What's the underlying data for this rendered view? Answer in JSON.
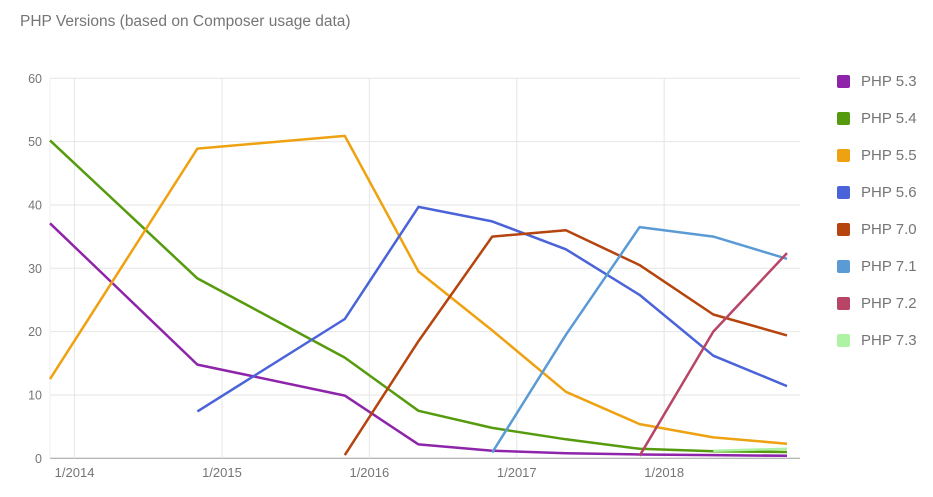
{
  "chart_data": {
    "type": "line",
    "title": "PHP Versions (based on Composer usage data)",
    "legend_position": "right",
    "grid": true,
    "ylim": [
      0,
      60
    ],
    "y_ticks": [
      0,
      10,
      20,
      30,
      40,
      50,
      60
    ],
    "x_tick_labels": [
      "1/2014",
      "1/2015",
      "1/2016",
      "1/2017",
      "1/2018"
    ],
    "x_tick_months": [
      2,
      14,
      26,
      38,
      50
    ],
    "point_dates": [
      "11/2013",
      "11/2014",
      "11/2015",
      "5/2016",
      "11/2016",
      "5/2017",
      "11/2017",
      "5/2018",
      "11/2018"
    ],
    "point_months": [
      0,
      12,
      24,
      30,
      36,
      42,
      48,
      54,
      60
    ],
    "series": [
      {
        "name": "PHP 5.3",
        "color": "#8e24aa",
        "values": [
          37.1,
          14.8,
          9.9,
          2.2,
          1.2,
          0.8,
          0.6,
          0.5,
          0.4
        ]
      },
      {
        "name": "PHP 5.4",
        "color": "#569b0e",
        "values": [
          50.2,
          28.4,
          15.9,
          7.5,
          4.8,
          3.0,
          1.5,
          1.1,
          1.0
        ]
      },
      {
        "name": "PHP 5.5",
        "color": "#efa211",
        "values": [
          12.5,
          48.9,
          50.9,
          29.5,
          20.2,
          10.5,
          5.4,
          3.3,
          2.3
        ]
      },
      {
        "name": "PHP 5.6",
        "color": "#4b63d8",
        "values": [
          null,
          7.4,
          22.0,
          39.7,
          37.4,
          33.0,
          25.8,
          16.2,
          11.4
        ]
      },
      {
        "name": "PHP 7.0",
        "color": "#b5440e",
        "values": [
          null,
          null,
          0.5,
          18.5,
          35.0,
          36.0,
          30.5,
          22.7,
          19.4
        ]
      },
      {
        "name": "PHP 7.1",
        "color": "#5b9bd5",
        "values": [
          null,
          null,
          null,
          null,
          0.9,
          19.5,
          36.5,
          35.0,
          31.5
        ]
      },
      {
        "name": "PHP 7.2",
        "color": "#b84566",
        "values": [
          null,
          null,
          null,
          null,
          null,
          null,
          0.4,
          20.0,
          32.4
        ]
      },
      {
        "name": "PHP 7.3",
        "color": "#aef2a4",
        "values": [
          null,
          null,
          null,
          null,
          null,
          null,
          null,
          1.2,
          1.5
        ]
      }
    ],
    "colors": {
      "text": "#757575",
      "grid": "#e6e6e6",
      "edge_grid": "#efefef",
      "axis": "#9e9e9e",
      "background": "#ffffff"
    }
  }
}
